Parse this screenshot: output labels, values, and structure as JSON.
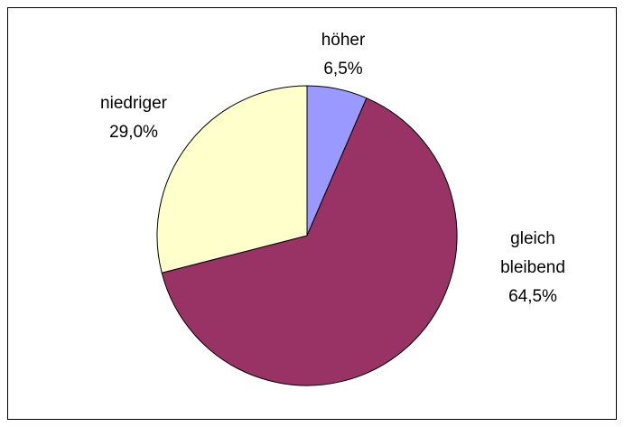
{
  "chart_data": {
    "type": "pie",
    "categories": [
      "höher",
      "gleich bleibend",
      "niedriger"
    ],
    "values": [
      6.5,
      64.5,
      29.0
    ],
    "value_labels": [
      "6,5%",
      "64,5%",
      "29,0%"
    ],
    "colors": [
      "#9999ff",
      "#993366",
      "#ffffcc"
    ]
  }
}
